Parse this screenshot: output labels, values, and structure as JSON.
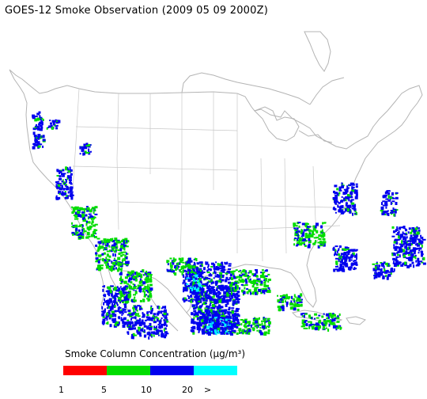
{
  "title": "GOES-12 Smoke Observation (2009 05 09  2000Z)",
  "legend": {
    "title": "Smoke Column Concentration (μg/m³)",
    "bins": [
      {
        "color": "#ff0000"
      },
      {
        "color": "#00dd00"
      },
      {
        "color": "#0000ee"
      },
      {
        "color": "#00ffff"
      }
    ],
    "ticks": [
      "1",
      "5",
      "10",
      "20",
      ">"
    ]
  },
  "map": {
    "outline_color": "#b4b4b4",
    "region": "continental United States",
    "smoke_regions": [
      {
        "name": "pacific-northwest",
        "level": "blue"
      },
      {
        "name": "california-coast",
        "level": "green"
      },
      {
        "name": "baja-california",
        "level": "blue"
      },
      {
        "name": "northern-mexico",
        "level": "blue"
      },
      {
        "name": "gulf-of-mexico",
        "level": "green"
      },
      {
        "name": "texas-gulf-coast",
        "level": "green"
      },
      {
        "name": "florida",
        "level": "green"
      },
      {
        "name": "mid-atlantic-coast",
        "level": "blue"
      },
      {
        "name": "western-atlantic",
        "level": "blue"
      },
      {
        "name": "yucatan-caribbean",
        "level": "cyan"
      }
    ]
  }
}
